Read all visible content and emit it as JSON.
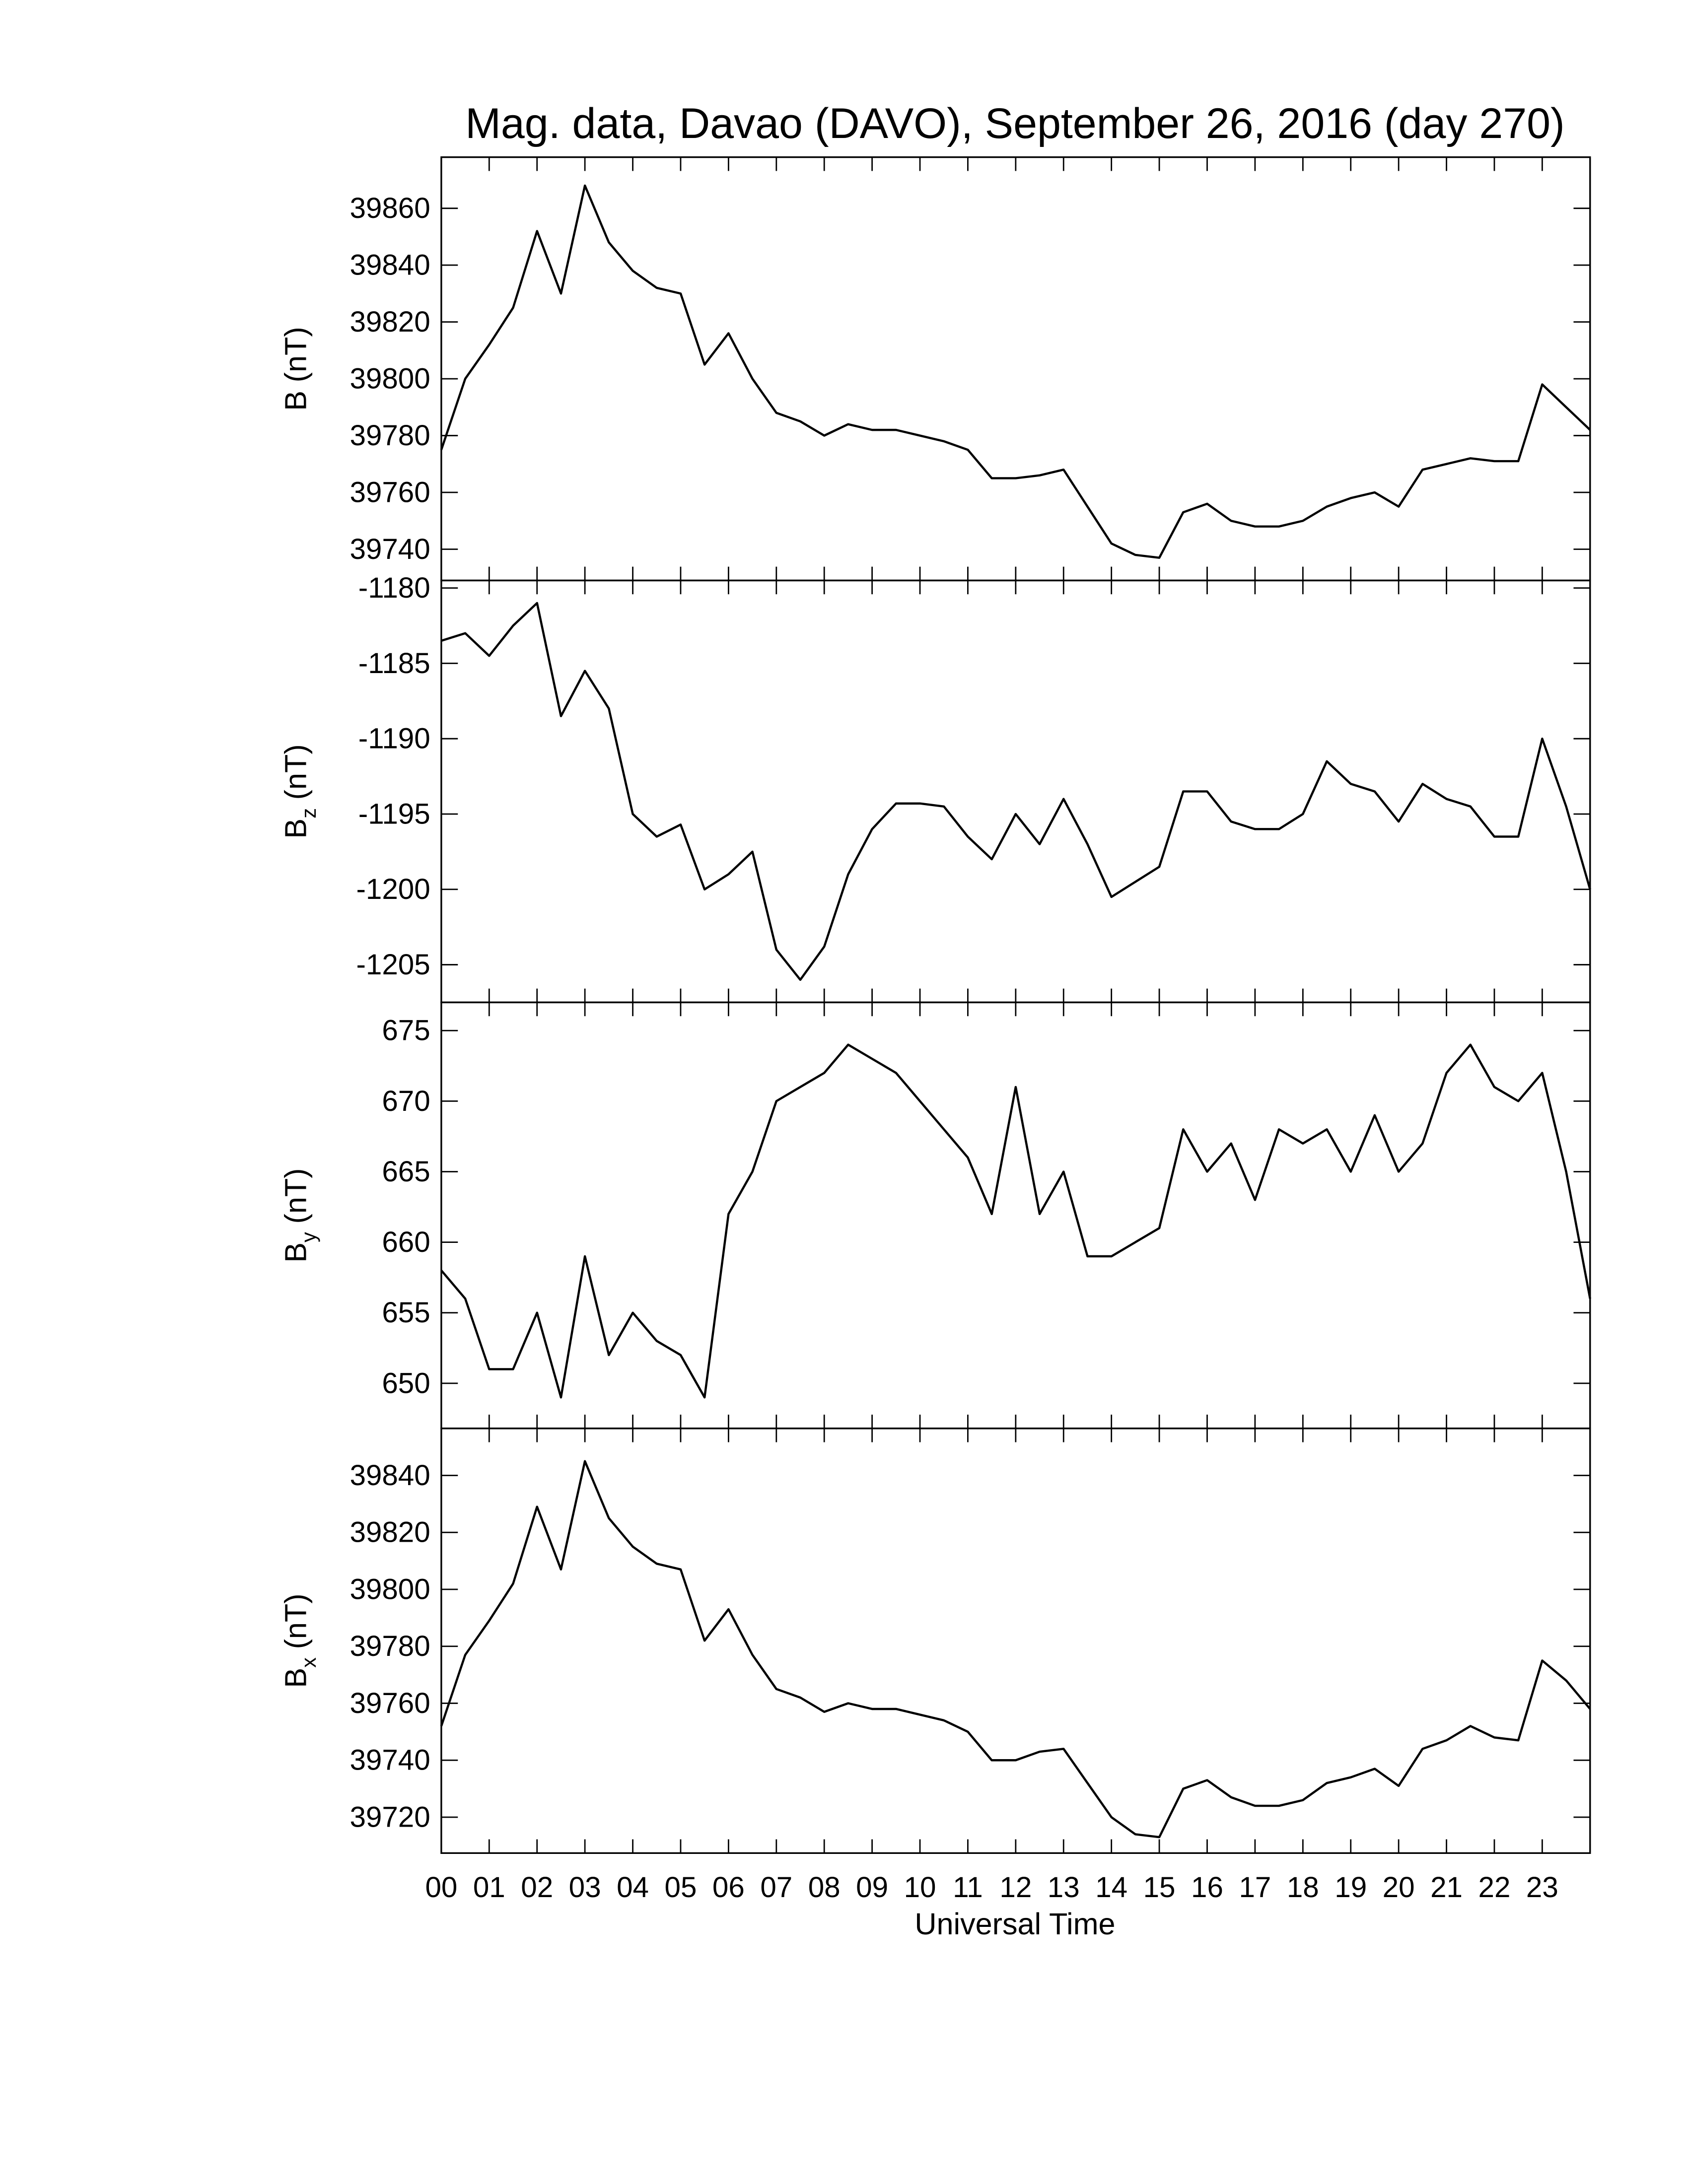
{
  "chart_data": [
    {
      "type": "line",
      "title": "Mag. data, Davao (DAVO), September 26, 2016 (day 270)",
      "ylabel": "B",
      "ylabel_units": "(nT)",
      "color": "#000000",
      "x": [
        0,
        0.5,
        1,
        1.5,
        2,
        2.5,
        3,
        3.5,
        4,
        4.5,
        5,
        5.5,
        6,
        6.5,
        7,
        7.5,
        8,
        8.5,
        9,
        9.5,
        10,
        10.5,
        11,
        11.5,
        12,
        12.5,
        13,
        13.5,
        14,
        14.5,
        15,
        15.5,
        16,
        16.5,
        17,
        17.5,
        18,
        18.5,
        19,
        19.5,
        20,
        20.5,
        21,
        21.5,
        22,
        22.5,
        23,
        23.5,
        24
      ],
      "values": [
        39775,
        39800,
        39812,
        39825,
        39852,
        39830,
        39868,
        39848,
        39838,
        39832,
        39830,
        39805,
        39816,
        39800,
        39788,
        39785,
        39780,
        39784,
        39782,
        39782,
        39780,
        39778,
        39775,
        39765,
        39765,
        39766,
        39768,
        39755,
        39742,
        39738,
        39737,
        39753,
        39756,
        39750,
        39748,
        39748,
        39750,
        39755,
        39758,
        39760,
        39755,
        39768,
        39770,
        39772,
        39771,
        39771,
        39798,
        39790,
        39782
      ],
      "xlim": [
        0,
        24
      ],
      "ylim": [
        39729,
        39878
      ],
      "yticks": [
        39740,
        39760,
        39780,
        39800,
        39820,
        39840,
        39860
      ]
    },
    {
      "type": "line",
      "ylabel": "B",
      "ylabel_subscript": "z",
      "ylabel_units": "(nT)",
      "color": "#000000",
      "x": [
        0,
        0.5,
        1,
        1.5,
        2,
        2.5,
        3,
        3.5,
        4,
        4.5,
        5,
        5.5,
        6,
        6.5,
        7,
        7.5,
        8,
        8.5,
        9,
        9.5,
        10,
        10.5,
        11,
        11.5,
        12,
        12.5,
        13,
        13.5,
        14,
        14.5,
        15,
        15.5,
        16,
        16.5,
        17,
        17.5,
        18,
        18.5,
        19,
        19.5,
        20,
        20.5,
        21,
        21.5,
        22,
        22.5,
        23,
        23.5,
        24
      ],
      "values": [
        -1183.5,
        -1183,
        -1184.5,
        -1182.5,
        -1181,
        -1188.5,
        -1185.5,
        -1188,
        -1195,
        -1196.5,
        -1195.7,
        -1200,
        -1199,
        -1197.5,
        -1204,
        -1206,
        -1203.8,
        -1199,
        -1196,
        -1194.3,
        -1194.3,
        -1194.5,
        -1196.5,
        -1198,
        -1195,
        -1197,
        -1194,
        -1197,
        -1200.5,
        -1199.5,
        -1198.5,
        -1193.5,
        -1193.5,
        -1195.5,
        -1196,
        -1196,
        -1195,
        -1191.5,
        -1193,
        -1193.5,
        -1195.5,
        -1193,
        -1194,
        -1194.5,
        -1196.5,
        -1196.5,
        -1190,
        -1194.5,
        -1200
      ],
      "xlim": [
        0,
        24
      ],
      "ylim": [
        -1207.5,
        -1179.5
      ],
      "yticks": [
        -1205,
        -1200,
        -1195,
        -1190,
        -1185,
        -1180
      ]
    },
    {
      "type": "line",
      "ylabel": "B",
      "ylabel_subscript": "y",
      "ylabel_units": "(nT)",
      "color": "#000000",
      "x": [
        0,
        0.5,
        1,
        1.5,
        2,
        2.5,
        3,
        3.5,
        4,
        4.5,
        5,
        5.5,
        6,
        6.5,
        7,
        7.5,
        8,
        8.5,
        9,
        9.5,
        10,
        10.5,
        11,
        11.5,
        12,
        12.5,
        13,
        13.5,
        14,
        14.5,
        15,
        15.5,
        16,
        16.5,
        17,
        17.5,
        18,
        18.5,
        19,
        19.5,
        20,
        20.5,
        21,
        21.5,
        22,
        22.5,
        23,
        23.5,
        24
      ],
      "values": [
        658,
        656,
        651,
        651,
        655,
        649,
        659,
        652,
        655,
        653,
        652,
        649,
        662,
        665,
        670,
        671,
        672,
        674,
        673,
        672,
        670,
        668,
        666,
        662,
        671,
        662,
        665,
        659,
        659,
        660,
        661,
        668,
        665,
        667,
        663,
        668,
        667,
        668,
        665,
        669,
        665,
        667,
        672,
        674,
        671,
        670,
        672,
        665,
        656
      ],
      "xlim": [
        0,
        24
      ],
      "ylim": [
        646.8,
        677
      ],
      "yticks": [
        650,
        655,
        660,
        665,
        670,
        675
      ]
    },
    {
      "type": "line",
      "ylabel": "B",
      "ylabel_subscript": "x",
      "ylabel_units": "(nT)",
      "xlabel": "Universal Time",
      "color": "#000000",
      "x": [
        0,
        0.5,
        1,
        1.5,
        2,
        2.5,
        3,
        3.5,
        4,
        4.5,
        5,
        5.5,
        6,
        6.5,
        7,
        7.5,
        8,
        8.5,
        9,
        9.5,
        10,
        10.5,
        11,
        11.5,
        12,
        12.5,
        13,
        13.5,
        14,
        14.5,
        15,
        15.5,
        16,
        16.5,
        17,
        17.5,
        18,
        18.5,
        19,
        19.5,
        20,
        20.5,
        21,
        21.5,
        22,
        22.5,
        23,
        23.5,
        24
      ],
      "values": [
        39752,
        39777,
        39789,
        39802,
        39829,
        39807,
        39845,
        39825,
        39815,
        39809,
        39807,
        39782,
        39793,
        39777,
        39765,
        39762,
        39757,
        39760,
        39758,
        39758,
        39756,
        39754,
        39750,
        39740,
        39740,
        39743,
        39744,
        39732,
        39720,
        39714,
        39713,
        39730,
        39733,
        39727,
        39724,
        39724,
        39726,
        39732,
        39734,
        39737,
        39731,
        39744,
        39747,
        39752,
        39748,
        39747,
        39775,
        39768,
        39758
      ],
      "xlim": [
        0,
        24
      ],
      "ylim": [
        39707.4,
        39856.5
      ],
      "yticks": [
        39720,
        39740,
        39760,
        39780,
        39800,
        39820,
        39840
      ],
      "xticks": [
        {
          "value": 0,
          "label": "00"
        },
        {
          "value": 1,
          "label": "01"
        },
        {
          "value": 2,
          "label": "02"
        },
        {
          "value": 3,
          "label": "03"
        },
        {
          "value": 4,
          "label": "04"
        },
        {
          "value": 5,
          "label": "05"
        },
        {
          "value": 6,
          "label": "06"
        },
        {
          "value": 7,
          "label": "07"
        },
        {
          "value": 8,
          "label": "08"
        },
        {
          "value": 9,
          "label": "09"
        },
        {
          "value": 10,
          "label": "10"
        },
        {
          "value": 11,
          "label": "11"
        },
        {
          "value": 12,
          "label": "12"
        },
        {
          "value": 13,
          "label": "13"
        },
        {
          "value": 14,
          "label": "14"
        },
        {
          "value": 15,
          "label": "15"
        },
        {
          "value": 16,
          "label": "16"
        },
        {
          "value": 17,
          "label": "17"
        },
        {
          "value": 18,
          "label": "18"
        },
        {
          "value": 19,
          "label": "19"
        },
        {
          "value": 20,
          "label": "20"
        },
        {
          "value": 21,
          "label": "21"
        },
        {
          "value": 22,
          "label": "22"
        },
        {
          "value": 23,
          "label": "23"
        }
      ]
    }
  ]
}
